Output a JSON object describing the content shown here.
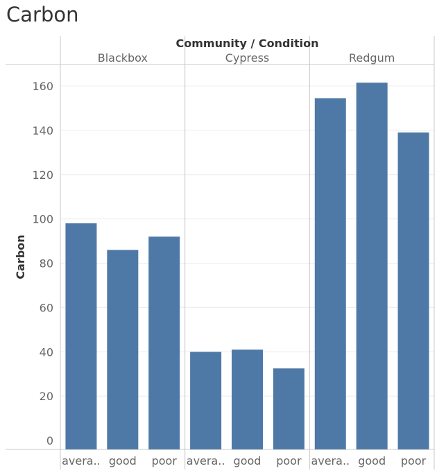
{
  "chart_data": {
    "type": "bar",
    "title": "Carbon",
    "header_label": "Community / Condition",
    "ylabel": "Carbon",
    "ylim": [
      0,
      170
    ],
    "yticks": [
      0,
      20,
      40,
      60,
      80,
      100,
      120,
      140,
      160
    ],
    "grid": true,
    "bar_color": "#4e79a7",
    "groups": [
      {
        "name": "Blackbox",
        "categories": [
          "avera..",
          "good",
          "poor"
        ],
        "values": [
          98,
          86,
          92
        ]
      },
      {
        "name": "Cypress",
        "categories": [
          "avera..",
          "good",
          "poor"
        ],
        "values": [
          40,
          41,
          32.5
        ]
      },
      {
        "name": "Redgum",
        "categories": [
          "avera..",
          "good",
          "poor"
        ],
        "values": [
          154.5,
          161.5,
          139
        ]
      }
    ]
  }
}
